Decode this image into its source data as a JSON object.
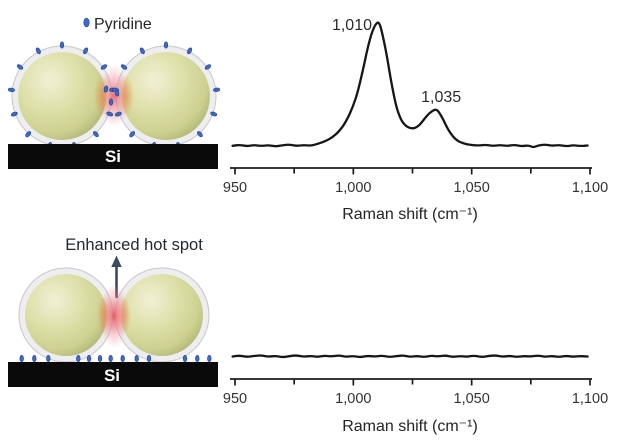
{
  "panels": {
    "schematic_top": {
      "legend_label": "Pyridine",
      "substrate_label": "Si",
      "description": "nanoparticle dimer covered with pyridine molecules, hot spot at gap"
    },
    "schematic_bottom": {
      "annotation_label": "Enhanced hot spot",
      "substrate_label": "Si",
      "description": "nanoparticle dimer with pyridine desorbed onto substrate surface"
    }
  },
  "colors": {
    "pyridine_dot": "#3e6cc2",
    "sphere_body": "#dde0a8",
    "sphere_shell": "#eeeef1",
    "hot_spot_glow": "#e8555e",
    "hot_spot_rim": "#e07b2f",
    "substrate": "#0a0a0a",
    "curve": "#161616",
    "text": "#2b2b2b",
    "arrow": "#3c4c5c"
  },
  "chart_data": [
    {
      "type": "line",
      "title": "",
      "xlabel": "Raman shift (cm⁻¹)",
      "ylabel": "",
      "xlim": [
        950,
        1100
      ],
      "ylim": [
        0,
        1.05
      ],
      "y_axis": "hidden",
      "grid": false,
      "legend_position": "none",
      "x_ticks": [
        950,
        1000,
        1050,
        1100
      ],
      "x_tick_labels": [
        "950",
        "1,000",
        "1,050",
        "1,100"
      ],
      "x_minor_ticks": [
        975,
        1025,
        1075
      ],
      "annotations": [
        {
          "text": "1,010",
          "x": 1010
        },
        {
          "text": "1,035",
          "x": 1035
        }
      ],
      "series": [
        {
          "x": [
            949,
            952,
            955,
            958,
            961,
            964,
            967,
            970,
            973,
            976,
            979,
            982,
            985,
            988,
            991,
            994,
            997,
            1000,
            1002,
            1004,
            1006,
            1008,
            1010,
            1011,
            1012,
            1014,
            1016,
            1018,
            1020,
            1022,
            1024,
            1026,
            1028,
            1030,
            1032,
            1034,
            1035,
            1036,
            1038,
            1040,
            1042,
            1044,
            1046,
            1048,
            1050,
            1053,
            1056,
            1059,
            1062,
            1065,
            1068,
            1071,
            1074,
            1076,
            1078,
            1081,
            1084,
            1087,
            1090,
            1093,
            1096,
            1099
          ],
          "y": [
            0.01,
            0.018,
            0.006,
            0.016,
            0.008,
            0.015,
            0.004,
            0.014,
            0.02,
            0.008,
            0.016,
            0.01,
            0.025,
            0.045,
            0.075,
            0.125,
            0.205,
            0.33,
            0.45,
            0.61,
            0.79,
            0.93,
            1.0,
            0.99,
            0.93,
            0.75,
            0.52,
            0.33,
            0.22,
            0.17,
            0.15,
            0.15,
            0.175,
            0.225,
            0.27,
            0.295,
            0.3,
            0.285,
            0.22,
            0.14,
            0.085,
            0.05,
            0.032,
            0.022,
            0.016,
            0.012,
            0.018,
            0.008,
            0.016,
            0.008,
            0.018,
            0.006,
            0.014,
            -0.004,
            0.012,
            0.02,
            0.01,
            0.016,
            0.006,
            0.015,
            0.008,
            0.012
          ]
        }
      ]
    },
    {
      "type": "line",
      "title": "",
      "xlabel": "Raman shift (cm⁻¹)",
      "ylabel": "",
      "xlim": [
        950,
        1100
      ],
      "ylim": [
        0,
        1.05
      ],
      "y_axis": "hidden",
      "grid": false,
      "legend_position": "none",
      "x_ticks": [
        950,
        1000,
        1050,
        1100
      ],
      "x_tick_labels": [
        "950",
        "1,000",
        "1,050",
        "1,100"
      ],
      "x_minor_ticks": [
        975,
        1025,
        1075
      ],
      "annotations": [],
      "series": [
        {
          "x": [
            949,
            952,
            955,
            958,
            961,
            964,
            967,
            970,
            973,
            976,
            979,
            982,
            985,
            988,
            991,
            994,
            997,
            1000,
            1003,
            1006,
            1009,
            1012,
            1015,
            1018,
            1021,
            1024,
            1027,
            1030,
            1033,
            1036,
            1039,
            1042,
            1045,
            1048,
            1051,
            1054,
            1057,
            1060,
            1063,
            1066,
            1069,
            1072,
            1075,
            1078,
            1081,
            1084,
            1087,
            1090,
            1093,
            1096,
            1099
          ],
          "y": [
            0.012,
            0.02,
            0.008,
            0.016,
            0.022,
            0.01,
            0.018,
            0.006,
            0.015,
            0.022,
            0.01,
            0.017,
            0.008,
            0.019,
            0.012,
            0.022,
            0.009,
            0.016,
            0.006,
            0.018,
            0.011,
            0.02,
            0.008,
            0.015,
            0.021,
            0.009,
            0.017,
            0.007,
            0.019,
            0.012,
            0.021,
            0.008,
            0.016,
            0.01,
            0.02,
            0.007,
            0.015,
            0.022,
            0.01,
            0.018,
            0.008,
            0.016,
            0.011,
            0.021,
            0.009,
            0.017,
            0.007,
            0.018,
            0.01,
            0.016,
            0.012
          ]
        }
      ]
    }
  ]
}
